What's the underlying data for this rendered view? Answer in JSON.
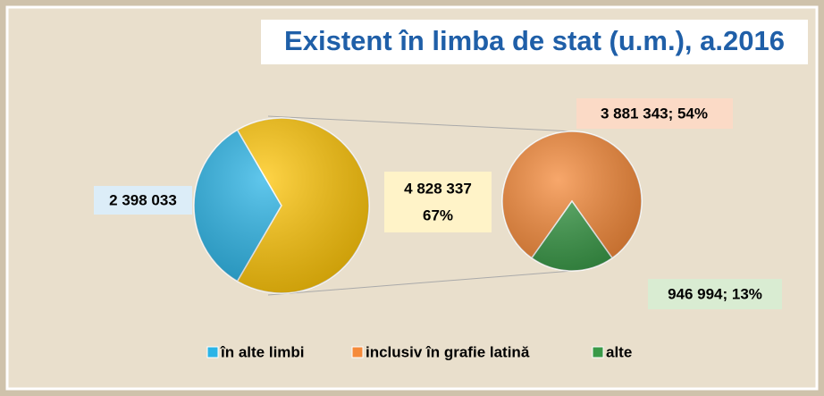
{
  "chart_data": {
    "type": "pie_of_pie",
    "title": "Existent în limba de stat (u.m.), a.2016",
    "categories": [
      "în alte limbi",
      null
    ],
    "values": [
      2398033,
      4828337
    ],
    "value_labels": [
      "2 398 033",
      [
        "4 828 337",
        "67%"
      ]
    ],
    "colors": [
      "#2bb4e6",
      "#ffc60a"
    ],
    "secondary": {
      "categories": [
        "inclusiv în grafie latină",
        "alte"
      ],
      "values": [
        3881343,
        946994
      ],
      "value_labels": [
        "3 881 343; 54%",
        "946 994; 13%"
      ],
      "colors": [
        "#f58a3a",
        "#3a9a48"
      ]
    }
  }
}
